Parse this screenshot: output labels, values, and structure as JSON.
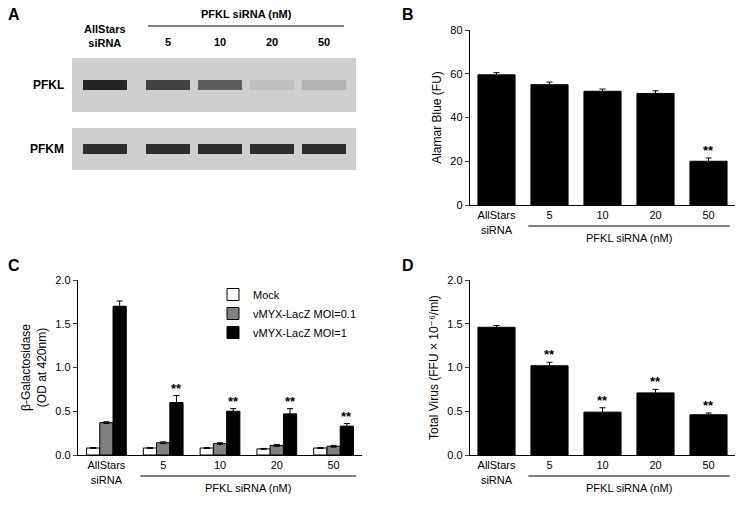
{
  "blot": {
    "panel": "A",
    "lanes": [
      "AllStars siRNA",
      "5",
      "10",
      "20",
      "50"
    ],
    "lane_group": {
      "label": "PFKL siRNA (nM)",
      "lanes": [
        "5",
        "10",
        "20",
        "50"
      ]
    },
    "rows": [
      {
        "label": "PFKL",
        "band_intensity": [
          0.9,
          0.75,
          0.6,
          0.08,
          0.15
        ]
      },
      {
        "label": "PFKM",
        "band_intensity": [
          0.85,
          0.85,
          0.85,
          0.85,
          0.85
        ]
      }
    ]
  },
  "chart_data": [
    {
      "panel": "B",
      "type": "bar",
      "categories": [
        "AllStars siRNA",
        "5",
        "10",
        "20",
        "50"
      ],
      "category_group": {
        "label": "PFKL siRNA (nM)",
        "categories": [
          "5",
          "10",
          "20",
          "50"
        ]
      },
      "ylabel": "Alamar Blue (FU)",
      "ylim": [
        0,
        80
      ],
      "yticks": [
        0,
        20,
        40,
        60,
        80
      ],
      "grid": false,
      "series": [
        {
          "color": "#000000",
          "values": [
            59.5,
            55,
            52,
            51,
            20
          ],
          "errors": [
            1,
            1.2,
            1,
            1.2,
            1.5
          ]
        }
      ],
      "annotations": [
        {
          "category": "50",
          "text": "**"
        }
      ]
    },
    {
      "panel": "C",
      "type": "bar",
      "categories": [
        "AllStars siRNA",
        "5",
        "10",
        "20",
        "50"
      ],
      "category_group": {
        "label": "PFKL siRNA (nM)",
        "categories": [
          "5",
          "10",
          "20",
          "50"
        ]
      },
      "ylabel": [
        "β-Galactosidase",
        "(OD at 420nm)"
      ],
      "ylim": [
        0,
        2.0
      ],
      "yticks": [
        {
          "value": 0,
          "label": "0.0"
        },
        {
          "value": 0.5,
          "label": "0.5"
        },
        {
          "value": 1.0,
          "label": "1.0"
        },
        {
          "value": 1.5,
          "label": "1.5"
        },
        {
          "value": 2.0,
          "label": "2.0"
        }
      ],
      "grid": false,
      "legend": "upper right",
      "series": [
        {
          "name": "Mock",
          "color": "#ffffff",
          "values": [
            0.08,
            0.08,
            0.08,
            0.07,
            0.08
          ],
          "errors": [
            0.005,
            0.005,
            0.005,
            0.005,
            0.005
          ]
        },
        {
          "name": "vMYX-LacZ MOI=0.1",
          "color": "#808080",
          "values": [
            0.37,
            0.14,
            0.13,
            0.11,
            0.1
          ],
          "errors": [
            0.01,
            0.01,
            0.01,
            0.01,
            0.01
          ]
        },
        {
          "name": "vMYX-LacZ MOI=1",
          "color": "#000000",
          "values": [
            1.7,
            0.6,
            0.5,
            0.47,
            0.33
          ],
          "errors": [
            0.06,
            0.08,
            0.03,
            0.06,
            0.03
          ]
        }
      ],
      "annotations": [
        {
          "category": "5",
          "series": "vMYX-LacZ MOI=1",
          "text": "**"
        },
        {
          "category": "10",
          "series": "vMYX-LacZ MOI=1",
          "text": "**"
        },
        {
          "category": "20",
          "series": "vMYX-LacZ MOI=1",
          "text": "**"
        },
        {
          "category": "50",
          "series": "vMYX-LacZ MOI=1",
          "text": "**"
        }
      ]
    },
    {
      "panel": "D",
      "type": "bar",
      "categories": [
        "AllStars siRNA",
        "5",
        "10",
        "20",
        "50"
      ],
      "category_group": {
        "label": "PFKL siRNA (nM)",
        "categories": [
          "5",
          "10",
          "20",
          "50"
        ]
      },
      "ylabel": "Total Virus (FFU × 10⁻⁶/ml)",
      "ylim": [
        0,
        2.0
      ],
      "yticks": [
        {
          "value": 0,
          "label": "0.0"
        },
        {
          "value": 0.5,
          "label": "0.5"
        },
        {
          "value": 1.0,
          "label": "1.0"
        },
        {
          "value": 1.5,
          "label": "1.5"
        },
        {
          "value": 2.0,
          "label": "2.0"
        }
      ],
      "grid": false,
      "series": [
        {
          "color": "#000000",
          "values": [
            1.46,
            1.02,
            0.49,
            0.71,
            0.46
          ],
          "errors": [
            0.02,
            0.04,
            0.05,
            0.04,
            0.02
          ]
        }
      ],
      "annotations": [
        {
          "category": "5",
          "text": "**"
        },
        {
          "category": "10",
          "text": "**"
        },
        {
          "category": "20",
          "text": "**"
        },
        {
          "category": "50",
          "text": "**"
        }
      ]
    }
  ]
}
